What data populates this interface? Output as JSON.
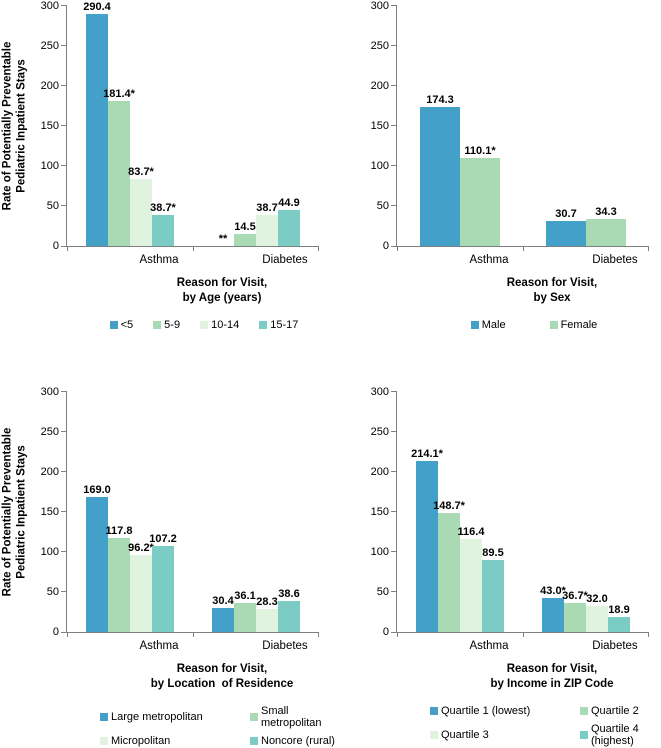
{
  "figure": {
    "background": "#FFFFFF",
    "axis_color": "#7F7F7F",
    "text_color": "#000000"
  },
  "chart_data": [
    {
      "id": "age",
      "type": "bar",
      "title": "Reason for Visit,\nby Age (years)",
      "ylabel": "Rate of Potentially Preventable\nPediatric Inpatient Stays",
      "ylim": [
        0,
        300
      ],
      "yticks": [
        0,
        50,
        100,
        150,
        200,
        250,
        300
      ],
      "categories": [
        "Asthma",
        "Diabetes"
      ],
      "legend_layout": "row",
      "series": [
        {
          "name": "<5",
          "color": "#43A0C9",
          "values": [
            290.4,
            null
          ],
          "labels": [
            "290.4",
            "**"
          ]
        },
        {
          "name": "5-9",
          "color": "#AADAB4",
          "values": [
            181.4,
            14.5
          ],
          "labels": [
            "181.4*",
            "14.5"
          ]
        },
        {
          "name": "10-14",
          "color": "#DFF3DE",
          "values": [
            83.7,
            38.7
          ],
          "labels": [
            "83.7*",
            "38.7"
          ]
        },
        {
          "name": "15-17",
          "color": "#7CCCC6",
          "values": [
            38.7,
            44.9
          ],
          "labels": [
            "38.7*",
            "44.9"
          ]
        }
      ]
    },
    {
      "id": "sex",
      "type": "bar",
      "title": "Reason for Visit,\nby Sex",
      "ylim": [
        0,
        300
      ],
      "yticks": [
        0,
        50,
        100,
        150,
        200,
        250,
        300
      ],
      "categories": [
        "Asthma",
        "Diabetes"
      ],
      "legend_layout": "row",
      "series": [
        {
          "name": "Male",
          "color": "#43A0C9",
          "values": [
            174.3,
            30.7
          ],
          "labels": [
            "174.3",
            "30.7"
          ]
        },
        {
          "name": "Female",
          "color": "#AADAB4",
          "values": [
            110.1,
            34.3
          ],
          "labels": [
            "110.1*",
            "34.3"
          ]
        }
      ]
    },
    {
      "id": "location",
      "type": "bar",
      "title": "Reason for Visit,\nby Location  of Residence",
      "ylabel": "Rate of Potentially Preventable\nPediatric Inpatient Stays",
      "ylim": [
        0,
        300
      ],
      "yticks": [
        0,
        50,
        100,
        150,
        200,
        250,
        300
      ],
      "categories": [
        "Asthma",
        "Diabetes"
      ],
      "legend_layout": "grid",
      "series": [
        {
          "name": "Large metropolitan",
          "color": "#43A0C9",
          "values": [
            169.0,
            30.4
          ],
          "labels": [
            "169.0",
            "30.4"
          ]
        },
        {
          "name": "Small metropolitan",
          "color": "#AADAB4",
          "values": [
            117.8,
            36.1
          ],
          "labels": [
            "117.8",
            "36.1"
          ]
        },
        {
          "name": "Micropolitan",
          "color": "#DFF3DE",
          "values": [
            96.2,
            28.3
          ],
          "labels": [
            "96.2*",
            "28.3"
          ]
        },
        {
          "name": "Noncore (rural)",
          "color": "#7CCCC6",
          "values": [
            107.2,
            38.6
          ],
          "labels": [
            "107.2",
            "38.6"
          ]
        }
      ]
    },
    {
      "id": "income",
      "type": "bar",
      "title": "Reason for Visit,\nby Income in ZIP Code",
      "ylim": [
        0,
        300
      ],
      "yticks": [
        0,
        50,
        100,
        150,
        200,
        250,
        300
      ],
      "categories": [
        "Asthma",
        "Diabetes"
      ],
      "legend_layout": "grid",
      "series": [
        {
          "name": "Quartile 1 (lowest)",
          "color": "#43A0C9",
          "values": [
            214.1,
            43.0
          ],
          "labels": [
            "214.1*",
            "43.0*"
          ]
        },
        {
          "name": "Quartile 2",
          "color": "#AADAB4",
          "values": [
            148.7,
            36.7
          ],
          "labels": [
            "148.7*",
            "36.7*"
          ]
        },
        {
          "name": "Quartile 3",
          "color": "#DFF3DE",
          "values": [
            116.4,
            32.0
          ],
          "labels": [
            "116.4",
            "32.0"
          ]
        },
        {
          "name": "Quartile 4 (highest)",
          "color": "#7CCCC6",
          "values": [
            89.5,
            18.9
          ],
          "labels": [
            "89.5",
            "18.9"
          ]
        }
      ]
    }
  ]
}
